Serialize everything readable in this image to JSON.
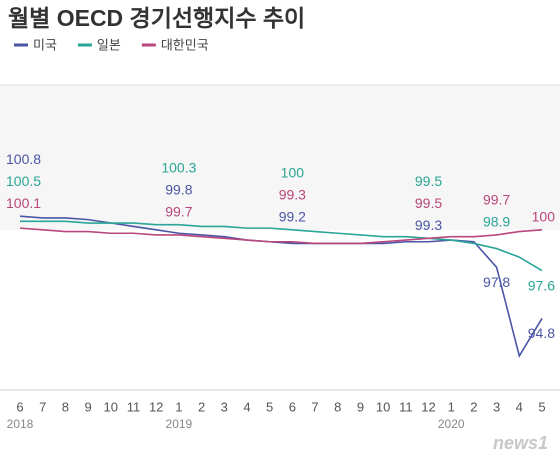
{
  "chart_data": {
    "type": "line",
    "title": "월별 OECD 경기선행지수 추이",
    "categories": [
      "6",
      "7",
      "8",
      "9",
      "10",
      "11",
      "12",
      "1",
      "2",
      "3",
      "4",
      "5",
      "6",
      "7",
      "8",
      "9",
      "10",
      "11",
      "12",
      "1",
      "2",
      "3",
      "4",
      "5"
    ],
    "year_labels": [
      "2018",
      null,
      null,
      null,
      null,
      null,
      null,
      "2019",
      null,
      null,
      null,
      null,
      null,
      null,
      null,
      null,
      null,
      null,
      null,
      "2020",
      null,
      null,
      null,
      null
    ],
    "series": [
      {
        "name": "미국",
        "color": "#4b55a6",
        "values": [
          100.8,
          100.7,
          100.7,
          100.6,
          100.4,
          100.2,
          100.0,
          99.8,
          99.7,
          99.6,
          99.4,
          99.3,
          99.2,
          99.2,
          99.2,
          99.2,
          99.2,
          99.3,
          99.3,
          99.4,
          99.3,
          97.8,
          92.6,
          94.8
        ],
        "value_labels": [
          "100.8",
          null,
          null,
          null,
          null,
          null,
          null,
          "99.8",
          null,
          null,
          null,
          null,
          "99.2",
          null,
          null,
          null,
          null,
          null,
          "99.3",
          null,
          null,
          "97.8",
          null,
          "94.8"
        ]
      },
      {
        "name": "일본",
        "color": "#2aa597",
        "values": [
          100.5,
          100.5,
          100.5,
          100.4,
          100.4,
          100.4,
          100.3,
          100.3,
          100.2,
          100.2,
          100.1,
          100.1,
          100.0,
          99.9,
          99.8,
          99.7,
          99.6,
          99.6,
          99.5,
          99.4,
          99.2,
          98.9,
          98.4,
          97.6
        ],
        "value_labels": [
          "100.5",
          null,
          null,
          null,
          null,
          null,
          null,
          "100.3",
          null,
          null,
          null,
          null,
          "100",
          null,
          null,
          null,
          null,
          null,
          "99.5",
          null,
          null,
          "98.9",
          null,
          "97.6"
        ]
      },
      {
        "name": "대한민국",
        "color": "#b9467c",
        "values": [
          100.1,
          100.0,
          99.9,
          99.9,
          99.8,
          99.8,
          99.7,
          99.7,
          99.6,
          99.5,
          99.4,
          99.3,
          99.3,
          99.2,
          99.2,
          99.2,
          99.3,
          99.4,
          99.5,
          99.6,
          99.6,
          99.7,
          99.9,
          100.0
        ],
        "value_labels": [
          "100.1",
          null,
          null,
          null,
          null,
          null,
          null,
          "99.7",
          null,
          null,
          null,
          null,
          "99.3",
          null,
          null,
          null,
          null,
          null,
          "99.5",
          null,
          null,
          "99.7",
          null,
          "100"
        ]
      }
    ],
    "ylim": [
      90.6,
      108.5
    ],
    "source": "news1"
  }
}
